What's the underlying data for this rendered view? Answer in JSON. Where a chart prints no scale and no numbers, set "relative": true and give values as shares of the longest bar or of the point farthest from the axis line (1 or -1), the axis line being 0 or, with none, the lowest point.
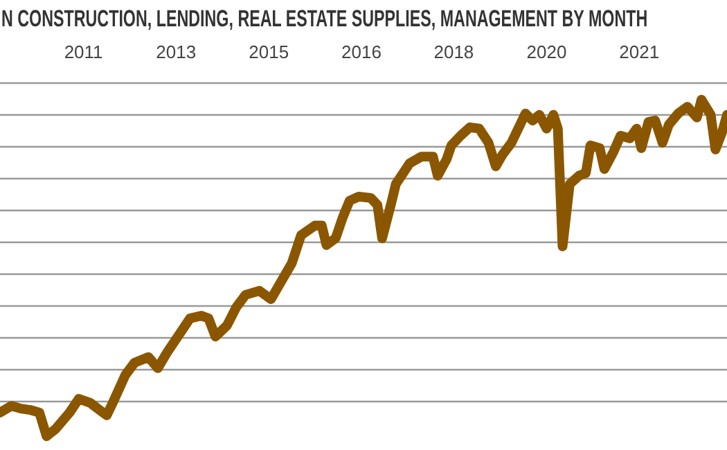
{
  "chart_data": {
    "type": "line",
    "title": "N CONSTRUCTION, LENDING, REAL ESTATE SUPPLIES, MANAGEMENT BY MONTH",
    "relative": true,
    "grid": "y",
    "xlim": [
      "2010-03-01",
      "2023-04-01"
    ],
    "xticks": [
      {
        "value": "2011-09-01",
        "label": "2011"
      },
      {
        "value": "2013-05-01",
        "label": "2013"
      },
      {
        "value": "2015-01-01",
        "label": "2015"
      },
      {
        "value": "2016-09-01",
        "label": "2016"
      },
      {
        "value": "2018-05-01",
        "label": "2018"
      },
      {
        "value": "2020-01-01",
        "label": "2020"
      },
      {
        "value": "2021-09-01",
        "label": "2021"
      }
    ],
    "x": [
      "2010-03-01",
      "2010-05-15",
      "2010-07-15",
      "2010-09-15",
      "2010-11-15",
      "2011-01-01",
      "2011-03-01",
      "2011-06-01",
      "2011-08-01",
      "2011-10-15",
      "2011-12-15",
      "2012-02-01",
      "2012-03-15",
      "2012-06-01",
      "2012-08-01",
      "2012-11-01",
      "2013-01-01",
      "2013-03-01",
      "2013-06-01",
      "2013-08-01",
      "2013-10-15",
      "2013-12-01",
      "2014-01-15",
      "2014-04-01",
      "2014-06-01",
      "2014-08-01",
      "2014-11-01",
      "2015-01-15",
      "2015-03-15",
      "2015-06-01",
      "2015-08-01",
      "2015-11-01",
      "2015-12-15",
      "2016-01-15",
      "2016-03-15",
      "2016-05-01",
      "2016-06-15",
      "2016-08-15",
      "2016-11-01",
      "2016-12-15",
      "2017-01-15",
      "2017-03-15",
      "2017-04-15",
      "2017-07-15",
      "2017-10-01",
      "2017-12-15",
      "2018-01-15",
      "2018-03-15",
      "2018-04-15",
      "2018-06-15",
      "2018-08-15",
      "2018-10-15",
      "2018-12-15",
      "2019-02-01",
      "2019-03-15",
      "2019-05-15",
      "2019-08-15",
      "2019-10-01",
      "2019-11-15",
      "2020-01-01",
      "2020-02-15",
      "2020-03-15",
      "2020-04-15",
      "2020-06-01",
      "2020-08-01",
      "2020-09-15",
      "2020-10-15",
      "2020-12-15",
      "2021-01-15",
      "2021-03-15",
      "2021-05-01",
      "2021-07-01",
      "2021-08-15",
      "2021-09-15",
      "2021-11-01",
      "2021-12-15",
      "2022-02-01",
      "2022-03-15",
      "2022-05-15",
      "2022-07-15",
      "2022-09-15",
      "2022-10-15",
      "2022-12-15",
      "2023-01-15",
      "2023-03-01",
      "2023-04-01"
    ],
    "series": [
      {
        "color": "#8a5700",
        "values": [
          0.07,
          0.09,
          0.082,
          0.078,
          0.07,
          0,
          0.021,
          0.07,
          0.111,
          0.099,
          0.078,
          0.062,
          0.103,
          0.181,
          0.218,
          0.235,
          0.202,
          0.247,
          0.309,
          0.35,
          0.358,
          0.35,
          0.296,
          0.329,
          0.383,
          0.42,
          0.432,
          0.407,
          0.453,
          0.514,
          0.597,
          0.626,
          0.626,
          0.568,
          0.588,
          0.65,
          0.7,
          0.712,
          0.708,
          0.687,
          0.588,
          0.691,
          0.749,
          0.811,
          0.831,
          0.831,
          0.774,
          0.823,
          0.864,
          0.893,
          0.918,
          0.914,
          0.872,
          0.802,
          0.835,
          0.872,
          0.959,
          0.938,
          0.955,
          0.914,
          0.955,
          0.914,
          0.564,
          0.749,
          0.774,
          0.782,
          0.864,
          0.856,
          0.794,
          0.844,
          0.893,
          0.885,
          0.914,
          0.856,
          0.934,
          0.938,
          0.872,
          0.926,
          0.959,
          0.979,
          0.947,
          1,
          0.955,
          0.852,
          0.905,
          0.955
        ]
      }
    ]
  }
}
